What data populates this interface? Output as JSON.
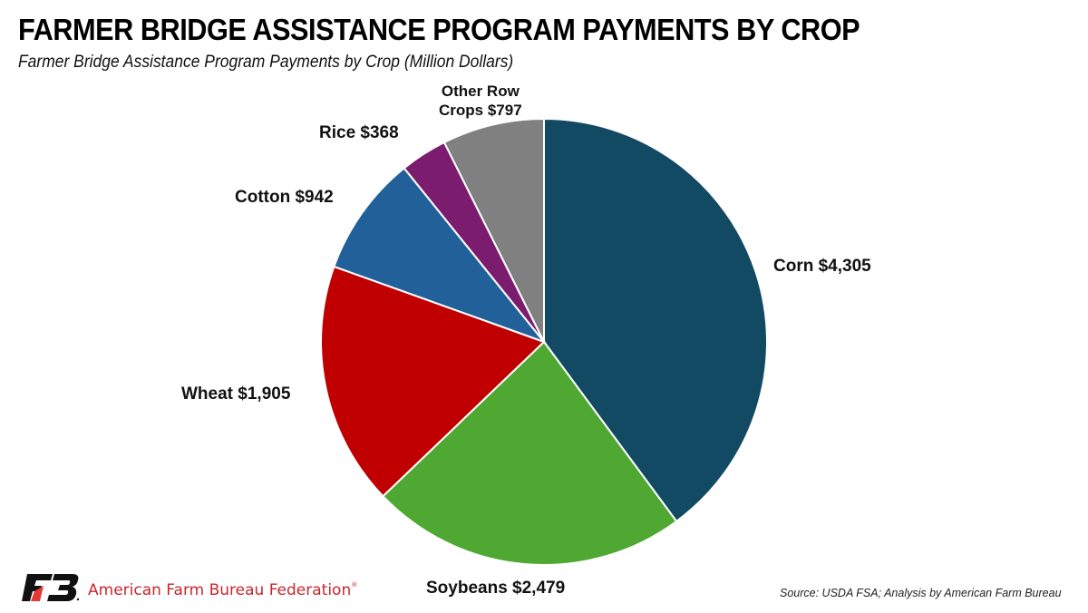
{
  "header": {
    "title": "FARMER BRIDGE ASSISTANCE PROGRAM PAYMENTS BY CROP",
    "subtitle": "Farmer Bridge Assistance Program Payments by Crop (Million Dollars)"
  },
  "footer": {
    "organization": "American Farm Bureau Federation",
    "logo_icon": "farm-bureau-fb-logo",
    "source": "Source: USDA FSA; Analysis by American Farm Bureau"
  },
  "labels": {
    "corn": "Corn $4,305",
    "soybeans": "Soybeans $2,479",
    "wheat": "Wheat $1,905",
    "cotton": "Cotton $942",
    "rice": "Rice $368",
    "other_line1": "Other Row",
    "other_line2": "Crops $797"
  },
  "chart_data": {
    "type": "pie",
    "title": "FARMER BRIDGE ASSISTANCE PROGRAM PAYMENTS BY CROP",
    "subtitle": "Farmer Bridge Assistance Program Payments by Crop (Million Dollars)",
    "units": "Million Dollars",
    "start_angle": "12 o'clock, clockwise",
    "categories": [
      "Corn",
      "Soybeans",
      "Wheat",
      "Cotton",
      "Rice",
      "Other Row Crops"
    ],
    "values": [
      4305,
      2479,
      1905,
      942,
      368,
      797
    ],
    "colors": [
      "#134a63",
      "#4ea832",
      "#c00000",
      "#22609a",
      "#7b1c6e",
      "#808080"
    ],
    "data_labels": [
      "Corn $4,305",
      "Soybeans $2,479",
      "Wheat $1,905",
      "Cotton $942",
      "Rice $368",
      "Other Row Crops $797"
    ],
    "legend": "none (labels placed beside slices)",
    "source": "Source: USDA FSA; Analysis by American Farm Bureau"
  }
}
